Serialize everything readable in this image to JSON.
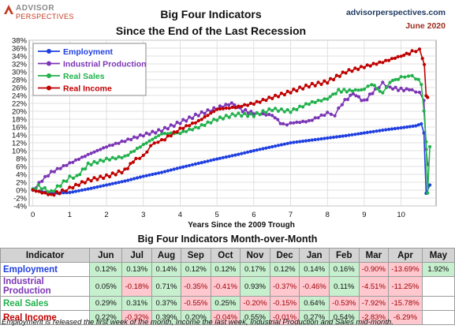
{
  "brand": {
    "line1": "ADVISOR",
    "line2": "PERSPECTIVES"
  },
  "header": {
    "title_line1": "Big Four Indicators",
    "title_line2": "Since the End of the Last Recession",
    "site": "advisorperspectives.com",
    "date": "June 2020"
  },
  "colors": {
    "employment": "#1f3fe0",
    "industrial": "#7b35b5",
    "sales": "#22b14c",
    "income": "#c00000"
  },
  "chart_data": {
    "type": "line",
    "title": "Big Four Indicators Since the End of the Last Recession",
    "xlabel": "Years Since the 2009 Trough",
    "ylabel": "",
    "xlim": [
      -0.1,
      10.95
    ],
    "ylim": [
      -4,
      38
    ],
    "x_ticks": [
      "0",
      "1",
      "2",
      "3",
      "4",
      "5",
      "6",
      "7",
      "8",
      "9",
      "10"
    ],
    "y_ticks": [
      "-4%",
      "-2%",
      "0%",
      "2%",
      "4%",
      "6%",
      "8%",
      "10%",
      "12%",
      "14%",
      "16%",
      "18%",
      "20%",
      "22%",
      "24%",
      "26%",
      "28%",
      "30%",
      "32%",
      "34%",
      "36%",
      "38%"
    ],
    "grid": true,
    "legend_position": "top-left",
    "series": [
      {
        "name": "Employment",
        "points": [
          [
            0,
            0
          ],
          [
            0.5,
            -0.8
          ],
          [
            1,
            -0.6
          ],
          [
            1.5,
            0.3
          ],
          [
            2,
            1.3
          ],
          [
            2.5,
            2.3
          ],
          [
            3,
            3.5
          ],
          [
            3.5,
            4.5
          ],
          [
            4,
            5.7
          ],
          [
            4.5,
            6.8
          ],
          [
            5,
            7.9
          ],
          [
            5.5,
            8.9
          ],
          [
            6,
            10.0
          ],
          [
            6.5,
            11.0
          ],
          [
            7,
            12.0
          ],
          [
            7.5,
            12.6
          ],
          [
            8,
            13.2
          ],
          [
            8.5,
            13.8
          ],
          [
            9,
            14.5
          ],
          [
            9.5,
            15.2
          ],
          [
            10,
            15.8
          ],
          [
            10.4,
            16.3
          ],
          [
            10.55,
            16.8
          ],
          [
            10.62,
            14.5
          ],
          [
            10.68,
            -0.8
          ],
          [
            10.78,
            1.3
          ]
        ]
      },
      {
        "name": "Industrial Production",
        "points": [
          [
            0,
            0
          ],
          [
            0.25,
            2.5
          ],
          [
            0.5,
            4.5
          ],
          [
            1,
            6.8
          ],
          [
            1.5,
            9
          ],
          [
            2,
            11
          ],
          [
            2.5,
            12.5
          ],
          [
            3,
            14
          ],
          [
            3.5,
            15.2
          ],
          [
            4,
            17.2
          ],
          [
            4.5,
            19.2
          ],
          [
            5,
            20.8
          ],
          [
            5.4,
            22
          ],
          [
            5.7,
            20.2
          ],
          [
            6,
            19.5
          ],
          [
            6.5,
            19
          ],
          [
            6.8,
            16.5
          ],
          [
            7,
            17
          ],
          [
            7.5,
            17.5
          ],
          [
            8,
            19.5
          ],
          [
            8.2,
            19
          ],
          [
            8.4,
            22
          ],
          [
            8.7,
            24.5
          ],
          [
            9,
            22.5
          ],
          [
            9.3,
            25.5
          ],
          [
            9.5,
            27
          ],
          [
            9.7,
            26
          ],
          [
            10,
            25.5
          ],
          [
            10.3,
            25.5
          ],
          [
            10.5,
            24.5
          ],
          [
            10.62,
            23
          ],
          [
            10.68,
            10
          ],
          [
            10.72,
            6.5
          ]
        ]
      },
      {
        "name": "Real Sales",
        "points": [
          [
            0,
            0
          ],
          [
            0.15,
            1
          ],
          [
            0.5,
            -0.5
          ],
          [
            1,
            3.2
          ],
          [
            1.2,
            3.5
          ],
          [
            1.5,
            6.5
          ],
          [
            2,
            7.8
          ],
          [
            2.5,
            8.5
          ],
          [
            3,
            11.5
          ],
          [
            3.5,
            14.3
          ],
          [
            4,
            14.5
          ],
          [
            4.5,
            16
          ],
          [
            5,
            18
          ],
          [
            5.5,
            19.2
          ],
          [
            6,
            19
          ],
          [
            6.5,
            20.5
          ],
          [
            7,
            20
          ],
          [
            7.5,
            22
          ],
          [
            8,
            23.2
          ],
          [
            8.3,
            25.2
          ],
          [
            8.6,
            25.2
          ],
          [
            9,
            25.5
          ],
          [
            9.2,
            27
          ],
          [
            9.5,
            24.5
          ],
          [
            9.7,
            27.5
          ],
          [
            10,
            28.5
          ],
          [
            10.2,
            29
          ],
          [
            10.4,
            28.5
          ],
          [
            10.55,
            27
          ],
          [
            10.62,
            20
          ],
          [
            10.68,
            12
          ],
          [
            10.72,
            -0.5
          ],
          [
            10.78,
            11
          ]
        ]
      },
      {
        "name": "Real Income",
        "points": [
          [
            0,
            0
          ],
          [
            0.5,
            -1.2
          ],
          [
            0.8,
            -0.3
          ],
          [
            1,
            0.5
          ],
          [
            1.5,
            2.5
          ],
          [
            2,
            3.5
          ],
          [
            2.5,
            5
          ],
          [
            2.8,
            8
          ],
          [
            3,
            8.5
          ],
          [
            3.1,
            10
          ],
          [
            3.3,
            12
          ],
          [
            3.5,
            12.5
          ],
          [
            4,
            15.5
          ],
          [
            4.5,
            17.5
          ],
          [
            5,
            20.5
          ],
          [
            5.5,
            21
          ],
          [
            6,
            22
          ],
          [
            6.5,
            23.5
          ],
          [
            7,
            25
          ],
          [
            7.5,
            26.5
          ],
          [
            8,
            27.5
          ],
          [
            8.5,
            30
          ],
          [
            9,
            31.3
          ],
          [
            9.5,
            32.5
          ],
          [
            10,
            34
          ],
          [
            10.3,
            35
          ],
          [
            10.5,
            35.7
          ],
          [
            10.58,
            33.5
          ],
          [
            10.63,
            31.5
          ],
          [
            10.68,
            24
          ],
          [
            10.72,
            23.5
          ]
        ]
      }
    ]
  },
  "table": {
    "title": "Big Four Indicators Month-over-Month",
    "headers": [
      "Indicator",
      "Jun",
      "Jul",
      "Aug",
      "Sep",
      "Oct",
      "Nov",
      "Dec",
      "Jan",
      "Feb",
      "Mar",
      "Apr",
      "May"
    ],
    "rows": [
      {
        "name": "Employment",
        "values": [
          "0.12%",
          "0.13%",
          "0.14%",
          "0.12%",
          "0.12%",
          "0.17%",
          "0.12%",
          "0.14%",
          "0.16%",
          "-0.90%",
          "-13.69%",
          "1.92%"
        ]
      },
      {
        "name": "Industrial Production",
        "values": [
          "0.05%",
          "-0.18%",
          "0.71%",
          "-0.35%",
          "-0.41%",
          "0.93%",
          "-0.37%",
          "-0.46%",
          "0.11%",
          "-4.51%",
          "-11.25%",
          ""
        ]
      },
      {
        "name": "Real Sales",
        "values": [
          "0.29%",
          "0.31%",
          "0.37%",
          "-0.55%",
          "0.25%",
          "-0.20%",
          "-0.15%",
          "0.64%",
          "-0.53%",
          "-7.92%",
          "-15.78%",
          ""
        ]
      },
      {
        "name": "Real Income",
        "values": [
          "0.22%",
          "-0.32%",
          "0.39%",
          "0.20%",
          "-0.04%",
          "0.55%",
          "-0.01%",
          "0.27%",
          "0.54%",
          "-2.83%",
          "-6.29%",
          ""
        ]
      }
    ]
  },
  "footnote": "Employment is released the first week of the month, Income the last week, Industrial Production and Sales mid-month."
}
